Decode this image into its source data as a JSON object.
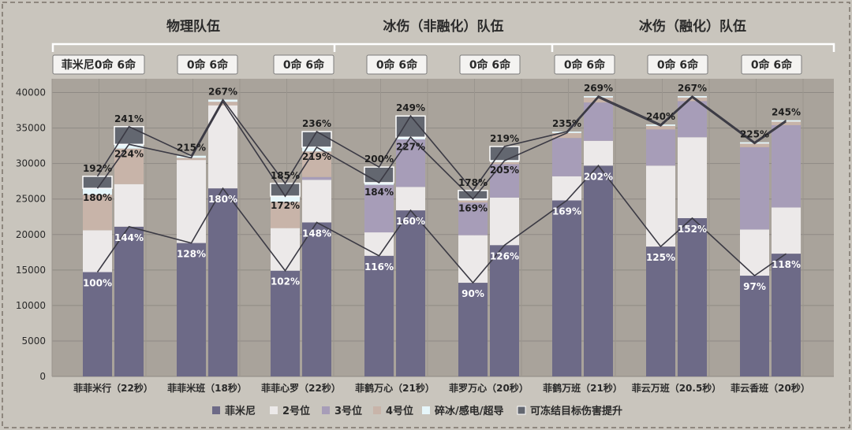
{
  "chart_data": {
    "type": "bar",
    "title": "",
    "ylim": [
      0,
      40000
    ],
    "yticks": [
      0,
      5000,
      10000,
      15000,
      20000,
      25000,
      30000,
      35000,
      40000
    ],
    "group_titles": [
      "物理队伍",
      "冰伤（非融化）队伍",
      "冰伤（融化）队伍"
    ],
    "categories": [
      "菲菲米行（22秒）",
      "菲菲米班（18秒）",
      "菲菲心罗（22秒）",
      "菲鹤万心（21秒）",
      "菲罗万心（20秒）",
      "菲鹤万班（21秒）",
      "菲云万班（20.5秒）",
      "菲云香班（20秒）"
    ],
    "sub_labels": [
      "菲米尼0命 6命",
      "0命 6命",
      "0命 6命",
      "0命 6命",
      "0命 6命",
      "0命 6命",
      "0命 6命",
      "0命 6命"
    ],
    "bar_variants": [
      "0命",
      "6命"
    ],
    "legend": [
      "菲米尼",
      "2号位",
      "3号位",
      "4号位",
      "碎冰/感电/超导",
      "可冻结目标伤害提升"
    ],
    "colors": [
      "#6d6a87",
      "#ece9e9",
      "#a79db8",
      "#c8b4a9",
      "#e6f6fa",
      "#636770"
    ],
    "bars": [
      {
        "category": "菲菲米行（22秒）",
        "variant": "0命",
        "segments": [
          14700,
          5900,
          0,
          5000,
          900,
          1700
        ],
        "inner_label": "100%",
        "mid_label": "180%",
        "top_label": "192%"
      },
      {
        "category": "菲菲米行（22秒）",
        "variant": "6命",
        "segments": [
          21100,
          6000,
          0,
          5000,
          600,
          2500
        ],
        "inner_label": "144%",
        "mid_label": "224%",
        "top_label": "241%"
      },
      {
        "category": "菲菲米班（18秒）",
        "variant": "0命",
        "segments": [
          18800,
          11700,
          0,
          300,
          300,
          0
        ],
        "inner_label": "128%",
        "mid_label": "",
        "top_label": "215%"
      },
      {
        "category": "菲菲米班（18秒）",
        "variant": "6命",
        "segments": [
          26500,
          11700,
          0,
          500,
          300,
          0
        ],
        "inner_label": "180%",
        "mid_label": "",
        "top_label": "267%"
      },
      {
        "category": "菲菲心罗（22秒）",
        "variant": "0命",
        "segments": [
          14900,
          6000,
          0,
          3700,
          800,
          1800
        ],
        "inner_label": "102%",
        "mid_label": "172%",
        "top_label": "185%"
      },
      {
        "category": "菲菲心罗（22秒）",
        "variant": "6命",
        "segments": [
          21700,
          6000,
          400,
          3600,
          600,
          2200
        ],
        "inner_label": "148%",
        "mid_label": "219%",
        "top_label": "236%"
      },
      {
        "category": "菲鹤万心（21秒）",
        "variant": "0命",
        "segments": [
          17000,
          3300,
          6700,
          0,
          300,
          2200
        ],
        "inner_label": "116%",
        "mid_label": "184%",
        "top_label": "200%"
      },
      {
        "category": "菲鹤万心（21秒）",
        "variant": "6命",
        "segments": [
          23400,
          3300,
          6700,
          0,
          300,
          3000
        ],
        "inner_label": "160%",
        "mid_label": "227%",
        "top_label": "249%"
      },
      {
        "category": "菲罗万心（20秒）",
        "variant": "0命",
        "segments": [
          13200,
          6700,
          4600,
          300,
          200,
          1200
        ],
        "inner_label": "90%",
        "mid_label": "169%",
        "top_label": "178%"
      },
      {
        "category": "菲罗万心（20秒）",
        "variant": "6命",
        "segments": [
          18500,
          6700,
          4700,
          300,
          200,
          2000
        ],
        "inner_label": "126%",
        "mid_label": "205%",
        "top_label": "219%"
      },
      {
        "category": "菲鹤万班（21秒）",
        "variant": "0命",
        "segments": [
          24800,
          3400,
          5400,
          700,
          200,
          0
        ],
        "inner_label": "169%",
        "mid_label": "",
        "top_label": "235%"
      },
      {
        "category": "菲鹤万班（21秒）",
        "variant": "6命",
        "segments": [
          29700,
          3500,
          5400,
          700,
          200,
          0
        ],
        "inner_label": "202%",
        "mid_label": "",
        "top_label": "269%"
      },
      {
        "category": "菲云万班（20.5秒）",
        "variant": "0命",
        "segments": [
          18300,
          11400,
          5100,
          500,
          200,
          0
        ],
        "inner_label": "125%",
        "mid_label": "",
        "top_label": "240%"
      },
      {
        "category": "菲云万班（20.5秒）",
        "variant": "6命",
        "segments": [
          22300,
          11400,
          5100,
          500,
          200,
          0
        ],
        "inner_label": "152%",
        "mid_label": "",
        "top_label": "267%"
      },
      {
        "category": "菲云香班（20秒）",
        "variant": "0命",
        "segments": [
          14200,
          6500,
          11600,
          500,
          200,
          0
        ],
        "inner_label": "97%",
        "mid_label": "",
        "top_label": "225%"
      },
      {
        "category": "菲云香班（20秒）",
        "variant": "6命",
        "segments": [
          17300,
          6500,
          11600,
          500,
          200,
          0
        ],
        "inner_label": "118%",
        "mid_label": "",
        "top_label": "245%"
      }
    ]
  }
}
